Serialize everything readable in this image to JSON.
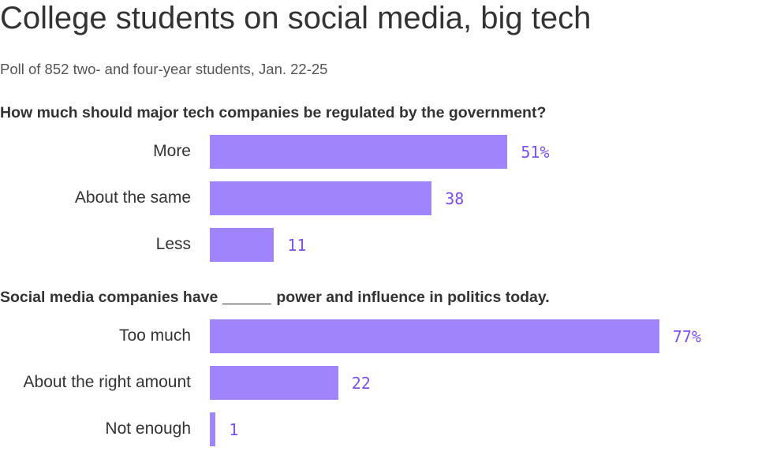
{
  "header": {
    "title": "College students on social media, big tech",
    "subtitle": "Poll of 852 two- and four-year students, Jan. 22-25"
  },
  "colors": {
    "bar": "#a084fb",
    "value_label": "#7b4ff0",
    "text": "#333333"
  },
  "chart_data": [
    {
      "type": "bar",
      "orientation": "horizontal",
      "title": "How much should major tech companies be regulated by the government?",
      "categories": [
        "More",
        "About the same",
        "Less"
      ],
      "values": [
        51,
        38,
        11
      ],
      "value_labels": [
        "51%",
        "38",
        "11"
      ],
      "xlim": [
        0,
        100
      ]
    },
    {
      "type": "bar",
      "orientation": "horizontal",
      "title_before_blank": "Social media companies have",
      "title_after_blank": "power and influence in politics today.",
      "categories": [
        "Too much",
        "About the right amount",
        "Not enough"
      ],
      "values": [
        77,
        22,
        1
      ],
      "value_labels": [
        "77%",
        "22",
        "1"
      ],
      "xlim": [
        0,
        100
      ]
    }
  ]
}
